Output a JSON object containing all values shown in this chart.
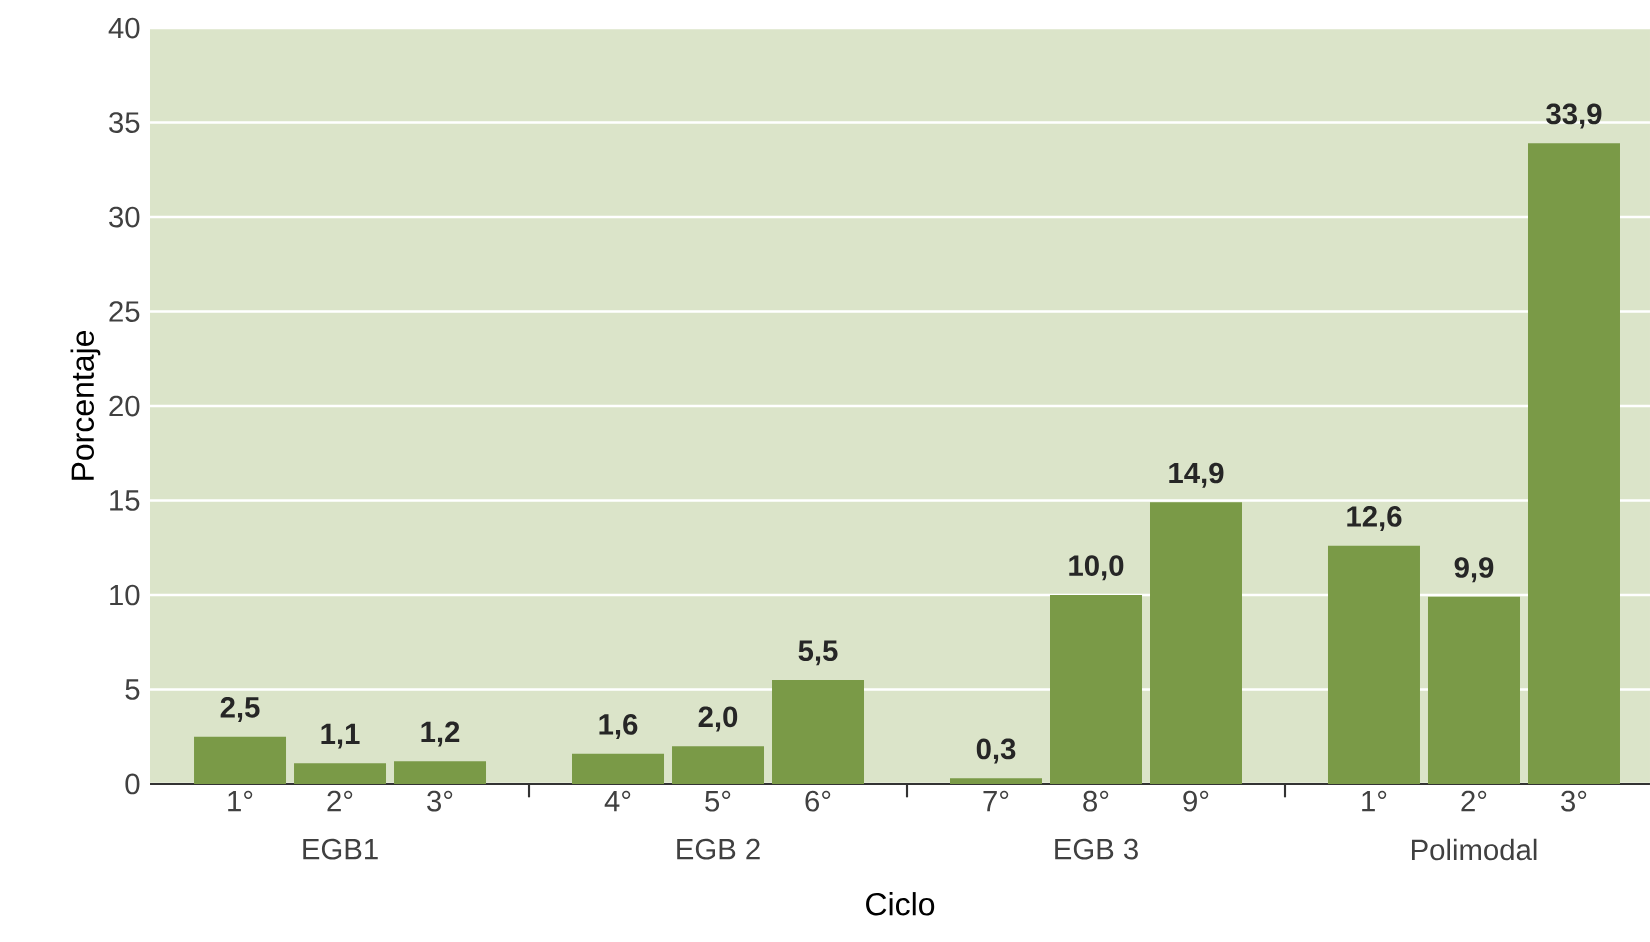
{
  "chart_data": {
    "type": "bar",
    "xlabel": "Ciclo",
    "ylabel": "Porcentaje",
    "categories": [
      "1°",
      "2°",
      "3°",
      "4°",
      "5°",
      "6°",
      "7°",
      "8°",
      "9°",
      "1°",
      "2°",
      "3°"
    ],
    "values": [
      2.5,
      1.1,
      1.2,
      1.6,
      2.0,
      5.5,
      0.3,
      10.0,
      14.9,
      12.6,
      9.9,
      33.9
    ],
    "color": "#7a9a47",
    "ylim": [
      0,
      40
    ],
    "yticks": [
      0,
      5,
      10,
      15,
      20,
      25,
      30,
      35,
      40
    ],
    "value_labels": [
      "2,5",
      "1,1",
      "1,2",
      "1,6",
      "2,0",
      "5,5",
      "0,3",
      "10,0",
      "14,9",
      "12,6",
      "9,9",
      "33,9"
    ],
    "grid": "y",
    "annotations": [
      "EGB1",
      "EGB 2",
      "EGB 3",
      "Polimodal"
    ]
  }
}
